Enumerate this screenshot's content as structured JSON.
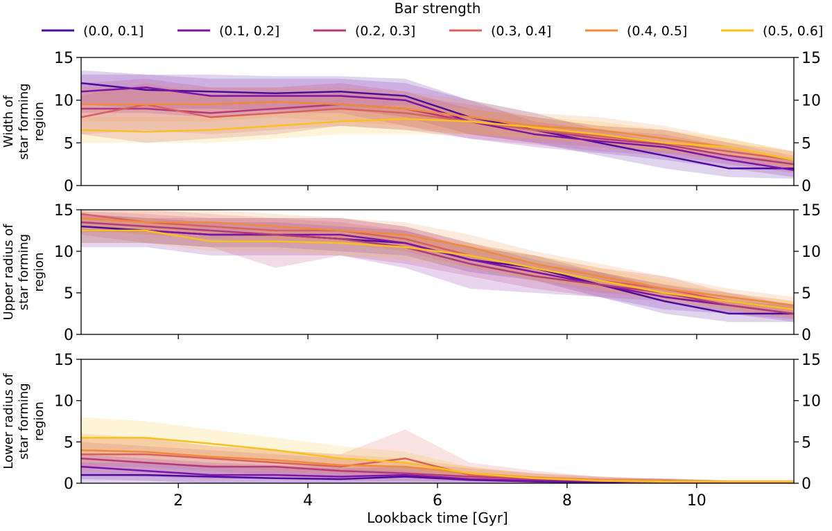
{
  "chart_data": {
    "type": "line",
    "xlabel": "Lookback time [Gyr]",
    "xlim": [
      0.5,
      11.5
    ],
    "x_ticks": [
      2,
      4,
      6,
      8,
      10
    ],
    "x_tick_labels": [
      "2",
      "4",
      "6",
      "8",
      "10"
    ],
    "y_ticks": [
      0,
      5,
      10,
      15
    ],
    "y_tick_labels": [
      "0",
      "5",
      "10",
      "15"
    ],
    "legend": {
      "title": "Bar strength",
      "placement": "top",
      "entries": [
        {
          "label": "(0.0, 0.1]",
          "color": "#4b0c9e"
        },
        {
          "label": "(0.1, 0.2]",
          "color": "#7e13a6"
        },
        {
          "label": "(0.2, 0.3]",
          "color": "#b2397b"
        },
        {
          "label": "(0.3, 0.4]",
          "color": "#d9605e"
        },
        {
          "label": "(0.4, 0.5]",
          "color": "#ef8a3c"
        },
        {
          "label": "(0.5, 0.6]",
          "color": "#f9c020"
        }
      ]
    },
    "x": [
      0.5,
      1.5,
      2.5,
      3.5,
      4.5,
      5.5,
      6.5,
      7.5,
      8.5,
      9.5,
      10.5,
      11.5
    ],
    "panels": [
      {
        "ylabel": [
          "Width of",
          "star forming",
          "region"
        ],
        "ylim": [
          0,
          15
        ],
        "series": [
          {
            "name": "(0.0, 0.1]",
            "values": [
              12.0,
              11.2,
              11.0,
              10.8,
              11.0,
              10.5,
              8.0,
              6.5,
              5.0,
              3.5,
              2.0,
              2.0
            ],
            "lower": [
              9.5,
              9.0,
              9.0,
              8.8,
              9.0,
              8.0,
              6.0,
              5.0,
              3.5,
              2.0,
              1.0,
              0.8
            ],
            "upper": [
              13.5,
              13.0,
              13.0,
              12.8,
              12.8,
              12.5,
              10.0,
              8.5,
              6.5,
              5.0,
              3.5,
              3.0
            ]
          },
          {
            "name": "(0.1, 0.2]",
            "values": [
              11.0,
              11.5,
              10.5,
              10.5,
              10.5,
              10.0,
              7.5,
              6.0,
              5.2,
              4.5,
              3.0,
              1.8
            ],
            "lower": [
              8.5,
              8.5,
              8.0,
              8.5,
              8.5,
              7.0,
              5.5,
              4.5,
              3.8,
              3.0,
              2.0,
              1.0
            ],
            "upper": [
              13.0,
              13.0,
              12.5,
              12.5,
              12.5,
              12.0,
              10.0,
              7.5,
              6.5,
              6.0,
              4.5,
              3.0
            ]
          },
          {
            "name": "(0.2, 0.3]",
            "values": [
              9.0,
              9.0,
              8.5,
              9.0,
              9.5,
              9.0,
              7.5,
              6.5,
              5.5,
              4.8,
              3.5,
              2.5
            ],
            "lower": [
              6.0,
              5.0,
              5.5,
              6.0,
              7.0,
              6.5,
              5.5,
              4.8,
              4.0,
              3.5,
              2.5,
              1.5
            ],
            "upper": [
              12.0,
              12.5,
              11.5,
              11.5,
              12.0,
              11.0,
              9.0,
              8.0,
              7.0,
              6.5,
              5.0,
              3.5
            ]
          },
          {
            "name": "(0.3, 0.4]",
            "values": [
              8.0,
              9.5,
              8.0,
              8.5,
              9.0,
              8.5,
              7.5,
              6.5,
              5.8,
              5.0,
              4.0,
              3.0
            ],
            "lower": [
              6.0,
              6.5,
              6.0,
              6.5,
              7.0,
              6.5,
              6.0,
              5.0,
              4.5,
              3.8,
              3.0,
              2.0
            ],
            "upper": [
              10.5,
              12.0,
              10.5,
              11.0,
              11.0,
              10.5,
              9.5,
              8.0,
              7.0,
              6.5,
              5.0,
              4.0
            ]
          },
          {
            "name": "(0.4, 0.5]",
            "values": [
              9.5,
              9.5,
              9.5,
              9.8,
              9.5,
              9.0,
              8.0,
              7.0,
              6.5,
              5.5,
              4.5,
              3.0
            ],
            "lower": [
              7.5,
              7.5,
              7.5,
              8.0,
              7.5,
              7.0,
              6.0,
              5.5,
              5.0,
              4.0,
              3.5,
              2.0
            ],
            "upper": [
              11.5,
              11.5,
              11.5,
              11.5,
              11.5,
              11.0,
              10.0,
              8.5,
              8.0,
              7.0,
              5.5,
              4.0
            ]
          },
          {
            "name": "(0.5, 0.6]",
            "values": [
              6.5,
              6.3,
              6.5,
              7.0,
              7.5,
              7.8,
              7.5,
              6.8,
              6.0,
              5.0,
              4.5,
              3.0
            ],
            "lower": [
              5.0,
              5.0,
              5.0,
              5.5,
              6.0,
              6.0,
              6.0,
              5.5,
              5.0,
              4.0,
              3.5,
              2.0
            ],
            "upper": [
              8.0,
              8.0,
              8.0,
              8.5,
              9.0,
              9.5,
              9.0,
              8.0,
              7.5,
              6.5,
              5.5,
              4.0
            ]
          }
        ]
      },
      {
        "ylabel": [
          "Upper radius of",
          "star forming",
          "region"
        ],
        "ylim": [
          0,
          15
        ],
        "series": [
          {
            "name": "(0.0, 0.1]",
            "values": [
              13.0,
              12.5,
              12.0,
              12.0,
              11.5,
              11.0,
              9.0,
              8.0,
              6.0,
              4.0,
              2.5,
              2.5
            ],
            "lower": [
              11.0,
              11.0,
              10.5,
              10.5,
              10.0,
              9.5,
              7.5,
              6.5,
              4.5,
              2.5,
              1.5,
              1.5
            ],
            "upper": [
              14.5,
              14.0,
              13.5,
              13.5,
              13.0,
              12.5,
              10.5,
              9.5,
              7.5,
              5.5,
              4.0,
              3.5
            ]
          },
          {
            "name": "(0.1, 0.2]",
            "values": [
              12.5,
              12.5,
              12.0,
              12.0,
              12.0,
              11.0,
              9.0,
              7.5,
              6.0,
              4.5,
              3.5,
              2.5
            ],
            "lower": [
              10.5,
              10.5,
              9.5,
              9.5,
              9.5,
              8.0,
              5.5,
              5.0,
              4.5,
              3.0,
              2.5,
              1.5
            ],
            "upper": [
              14.5,
              14.0,
              14.0,
              14.0,
              14.0,
              13.0,
              11.0,
              9.0,
              7.5,
              6.0,
              5.0,
              3.5
            ]
          },
          {
            "name": "(0.2, 0.3]",
            "values": [
              13.5,
              13.0,
              12.5,
              12.0,
              11.5,
              10.5,
              8.5,
              7.0,
              6.0,
              5.0,
              3.5,
              2.5
            ],
            "lower": [
              12.0,
              11.0,
              10.5,
              8.0,
              9.5,
              8.5,
              7.0,
              5.5,
              4.5,
              4.0,
              2.5,
              1.8
            ],
            "upper": [
              14.8,
              14.5,
              14.0,
              14.0,
              13.5,
              12.5,
              10.5,
              8.5,
              7.5,
              6.0,
              4.5,
              3.5
            ]
          },
          {
            "name": "(0.3, 0.4]",
            "values": [
              14.5,
              13.5,
              13.0,
              12.5,
              12.5,
              11.5,
              9.5,
              8.0,
              6.5,
              5.5,
              4.0,
              3.0
            ],
            "lower": [
              13.0,
              12.0,
              11.5,
              11.0,
              11.0,
              10.0,
              8.0,
              6.5,
              5.0,
              4.5,
              3.0,
              2.0
            ],
            "upper": [
              15.0,
              15.0,
              14.5,
              14.0,
              14.0,
              13.0,
              11.0,
              9.5,
              8.0,
              7.0,
              5.0,
              4.0
            ]
          },
          {
            "name": "(0.4, 0.5]",
            "values": [
              14.0,
              13.5,
              13.5,
              13.0,
              12.5,
              12.0,
              10.5,
              8.5,
              7.0,
              5.5,
              4.5,
              3.5
            ],
            "lower": [
              12.5,
              12.0,
              12.0,
              11.5,
              11.0,
              10.5,
              9.0,
              7.0,
              5.5,
              4.5,
              3.5,
              2.5
            ],
            "upper": [
              15.0,
              15.0,
              15.0,
              14.5,
              14.0,
              13.5,
              12.0,
              10.0,
              8.5,
              7.0,
              5.5,
              4.5
            ]
          },
          {
            "name": "(0.5, 0.6]",
            "values": [
              12.5,
              12.5,
              11.2,
              11.2,
              11.0,
              10.5,
              9.5,
              8.0,
              6.5,
              5.0,
              4.0,
              3.0
            ],
            "lower": [
              11.0,
              11.0,
              10.0,
              10.0,
              9.5,
              9.0,
              8.0,
              6.5,
              5.5,
              4.0,
              3.0,
              2.0
            ],
            "upper": [
              14.0,
              14.0,
              12.5,
              12.5,
              12.5,
              12.0,
              11.0,
              9.5,
              8.0,
              6.5,
              5.0,
              4.0
            ]
          }
        ]
      },
      {
        "ylabel": [
          "Lower radius of",
          "star forming",
          "region"
        ],
        "ylim": [
          0,
          15
        ],
        "series": [
          {
            "name": "(0.0, 0.1]",
            "values": [
              1.0,
              1.0,
              0.8,
              0.6,
              0.5,
              0.8,
              0.4,
              0.2,
              0.1,
              0.3,
              0.1,
              0.1
            ],
            "lower": [
              0.0,
              0.0,
              0.0,
              0.0,
              0.0,
              0.0,
              0.0,
              0.0,
              0.0,
              0.0,
              0.0,
              0.0
            ],
            "upper": [
              2.5,
              2.5,
              2.2,
              2.0,
              1.8,
              2.0,
              1.2,
              0.7,
              0.5,
              0.6,
              0.3,
              0.3
            ]
          },
          {
            "name": "(0.1, 0.2]",
            "values": [
              2.0,
              1.5,
              1.0,
              1.0,
              0.8,
              1.0,
              0.5,
              0.3,
              0.2,
              0.2,
              0.1,
              0.1
            ],
            "lower": [
              0.5,
              0.3,
              0.0,
              0.0,
              0.0,
              0.0,
              0.0,
              0.0,
              0.0,
              0.0,
              0.0,
              0.0
            ],
            "upper": [
              3.5,
              3.0,
              2.5,
              2.2,
              2.0,
              2.0,
              1.2,
              0.8,
              0.6,
              0.5,
              0.3,
              0.3
            ]
          },
          {
            "name": "(0.2, 0.3]",
            "values": [
              3.0,
              2.5,
              2.0,
              2.0,
              1.5,
              1.2,
              0.8,
              0.5,
              0.3,
              0.2,
              0.1,
              0.1
            ],
            "lower": [
              1.0,
              0.8,
              0.5,
              0.5,
              0.3,
              0.3,
              0.2,
              0.1,
              0.0,
              0.0,
              0.0,
              0.0
            ],
            "upper": [
              5.0,
              4.5,
              4.0,
              3.5,
              3.0,
              2.5,
              1.8,
              1.2,
              0.8,
              0.5,
              0.3,
              0.3
            ]
          },
          {
            "name": "(0.3, 0.4]",
            "values": [
              3.5,
              3.5,
              3.0,
              2.5,
              2.0,
              3.0,
              1.0,
              0.6,
              0.3,
              0.2,
              0.1,
              0.1
            ],
            "lower": [
              2.0,
              2.0,
              1.5,
              1.0,
              0.8,
              1.0,
              0.3,
              0.2,
              0.1,
              0.0,
              0.0,
              0.0
            ],
            "upper": [
              5.5,
              5.5,
              4.5,
              4.0,
              3.5,
              6.5,
              2.5,
              1.5,
              0.8,
              0.5,
              0.3,
              0.3
            ]
          },
          {
            "name": "(0.4, 0.5]",
            "values": [
              4.0,
              3.8,
              3.2,
              2.8,
              2.2,
              2.0,
              1.2,
              0.7,
              0.4,
              0.3,
              0.2,
              0.2
            ],
            "lower": [
              2.5,
              2.5,
              2.0,
              1.5,
              1.2,
              1.0,
              0.5,
              0.3,
              0.2,
              0.1,
              0.0,
              0.0
            ],
            "upper": [
              6.0,
              5.5,
              4.5,
              4.0,
              3.5,
              3.0,
              2.0,
              1.2,
              0.8,
              0.5,
              0.4,
              0.4
            ]
          },
          {
            "name": "(0.5, 0.6]",
            "values": [
              5.5,
              5.5,
              4.8,
              4.0,
              3.0,
              2.5,
              1.2,
              0.6,
              0.3,
              0.2,
              0.2,
              0.2
            ],
            "lower": [
              3.5,
              3.5,
              3.0,
              2.5,
              1.8,
              1.5,
              0.5,
              0.2,
              0.1,
              0.0,
              0.0,
              0.0
            ],
            "upper": [
              8.0,
              7.5,
              6.5,
              5.5,
              4.5,
              3.8,
              2.0,
              1.0,
              0.6,
              0.5,
              0.4,
              0.4
            ]
          }
        ]
      }
    ]
  }
}
